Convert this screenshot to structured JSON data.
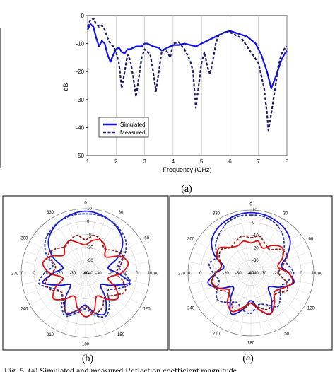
{
  "chart_data": [
    {
      "type": "line",
      "title": "",
      "xlabel": "Frequency (GHz)",
      "ylabel": "dB",
      "xlim": [
        1,
        8
      ],
      "ylim": [
        -50,
        0
      ],
      "x_ticks": [
        "1",
        "2",
        "3",
        "4",
        "5",
        "6",
        "7",
        "8"
      ],
      "y_ticks": [
        "0",
        "-10",
        "-20",
        "-30",
        "-40",
        "-50"
      ],
      "grid": "vertical",
      "legend": "bottom-left",
      "series": [
        {
          "name": "Simulated",
          "style": "solid",
          "color": "#1010ee",
          "points": [
            [
              1.0,
              -5
            ],
            [
              1.1,
              -3
            ],
            [
              1.2,
              -4
            ],
            [
              1.3,
              -8
            ],
            [
              1.4,
              -11
            ],
            [
              1.5,
              -9
            ],
            [
              1.6,
              -10
            ],
            [
              1.7,
              -14
            ],
            [
              1.8,
              -16.5
            ],
            [
              1.9,
              -14
            ],
            [
              2.0,
              -12
            ],
            [
              2.1,
              -11.5
            ],
            [
              2.2,
              -13
            ],
            [
              2.3,
              -13.5
            ],
            [
              2.4,
              -12
            ],
            [
              2.5,
              -12
            ],
            [
              2.7,
              -11
            ],
            [
              2.9,
              -11
            ],
            [
              3.0,
              -10
            ],
            [
              3.1,
              -10
            ],
            [
              3.3,
              -11
            ],
            [
              3.5,
              -11.5
            ],
            [
              3.6,
              -12.5
            ],
            [
              3.7,
              -12
            ],
            [
              3.8,
              -11.5
            ],
            [
              4.0,
              -10.5
            ],
            [
              4.2,
              -10.5
            ],
            [
              4.4,
              -10
            ],
            [
              4.6,
              -10.5
            ],
            [
              4.8,
              -11
            ],
            [
              5.0,
              -10
            ],
            [
              5.2,
              -9
            ],
            [
              5.5,
              -7.5
            ],
            [
              5.8,
              -6
            ],
            [
              6.0,
              -5.5
            ],
            [
              6.3,
              -6.5
            ],
            [
              6.6,
              -7.5
            ],
            [
              6.9,
              -10
            ],
            [
              7.1,
              -14
            ],
            [
              7.3,
              -20
            ],
            [
              7.45,
              -26
            ],
            [
              7.6,
              -22
            ],
            [
              7.8,
              -16
            ],
            [
              7.9,
              -14
            ],
            [
              8.0,
              -12.5
            ]
          ]
        },
        {
          "name": "Measured",
          "style": "dashed",
          "color": "#1a1a66",
          "points": [
            [
              1.0,
              -4
            ],
            [
              1.1,
              -1.5
            ],
            [
              1.2,
              -1
            ],
            [
              1.3,
              -3
            ],
            [
              1.4,
              -4
            ],
            [
              1.5,
              -3.5
            ],
            [
              1.6,
              -5
            ],
            [
              1.7,
              -8
            ],
            [
              1.8,
              -10
            ],
            [
              1.9,
              -11
            ],
            [
              2.0,
              -13
            ],
            [
              2.1,
              -17
            ],
            [
              2.2,
              -26
            ],
            [
              2.3,
              -20
            ],
            [
              2.4,
              -14
            ],
            [
              2.5,
              -16
            ],
            [
              2.6,
              -22
            ],
            [
              2.7,
              -29
            ],
            [
              2.8,
              -22
            ],
            [
              2.9,
              -15
            ],
            [
              3.0,
              -12
            ],
            [
              3.1,
              -13
            ],
            [
              3.2,
              -14
            ],
            [
              3.3,
              -20
            ],
            [
              3.4,
              -27
            ],
            [
              3.5,
              -20
            ],
            [
              3.6,
              -13
            ],
            [
              3.7,
              -12
            ],
            [
              3.8,
              -13
            ],
            [
              3.9,
              -15
            ],
            [
              4.0,
              -10
            ],
            [
              4.2,
              -9.5
            ],
            [
              4.4,
              -12
            ],
            [
              4.6,
              -16
            ],
            [
              4.7,
              -20
            ],
            [
              4.8,
              -33
            ],
            [
              4.9,
              -25
            ],
            [
              5.0,
              -17
            ],
            [
              5.1,
              -13
            ],
            [
              5.2,
              -18
            ],
            [
              5.3,
              -21
            ],
            [
              5.4,
              -16
            ],
            [
              5.5,
              -10
            ],
            [
              5.6,
              -7
            ],
            [
              5.8,
              -6
            ],
            [
              6.0,
              -6
            ],
            [
              6.2,
              -7
            ],
            [
              6.4,
              -8
            ],
            [
              6.6,
              -11
            ],
            [
              6.8,
              -14
            ],
            [
              7.0,
              -17
            ],
            [
              7.2,
              -26
            ],
            [
              7.3,
              -35
            ],
            [
              7.35,
              -41
            ],
            [
              7.45,
              -35
            ],
            [
              7.6,
              -25
            ],
            [
              7.7,
              -18
            ],
            [
              7.8,
              -14
            ],
            [
              7.9,
              -12
            ],
            [
              8.0,
              -11
            ]
          ]
        }
      ]
    },
    {
      "type": "polar",
      "panel_label": "(b)",
      "angle_ticks": [
        "0",
        "30",
        "60",
        "90",
        "120",
        "150",
        "180",
        "210",
        "240",
        "270",
        "300",
        "330"
      ],
      "radial_ticks": [
        "10",
        "0",
        "-10",
        "-20",
        "-30",
        "-40"
      ],
      "rlim": [
        -40,
        10
      ],
      "series": [
        {
          "color": "#1515dd",
          "style": "solid",
          "values": [
            8,
            7,
            5,
            2,
            -3,
            -12,
            -22,
            -15,
            -5,
            -18,
            -25,
            -15,
            -5,
            -8,
            -15,
            -10,
            -5,
            -15,
            -25,
            -18,
            -6,
            -15,
            -22,
            -12,
            -3,
            2,
            5,
            7
          ]
        },
        {
          "color": "#2233bb",
          "style": "dashed",
          "values": [
            6,
            6,
            5,
            3,
            0,
            -6,
            -14,
            -10,
            -4,
            -12,
            -18,
            -10,
            -3,
            -6,
            -12,
            -8,
            -3,
            -10,
            -16,
            -12,
            -3,
            -8,
            -14,
            -6,
            0,
            3,
            5,
            6
          ]
        },
        {
          "color": "#dd1111",
          "style": "solid",
          "values": [
            -18,
            -14,
            -12,
            -15,
            -20,
            -10,
            -6,
            -12,
            -22,
            -14,
            -8,
            -14,
            -20,
            -10,
            -6,
            -12,
            -20,
            -14,
            -8,
            -14,
            -22,
            -12,
            -6,
            -10,
            -18,
            -14,
            -12,
            -16
          ]
        },
        {
          "color": "#8b1a1a",
          "style": "dashed",
          "values": [
            -14,
            -10,
            -12,
            -16,
            -12,
            -8,
            -12,
            -16,
            -10,
            -6,
            -12,
            -16,
            -10,
            -8,
            -14,
            -10,
            -6,
            -12,
            -16,
            -10,
            -8,
            -14,
            -16,
            -8,
            -10,
            -14,
            -12,
            -10
          ]
        }
      ]
    },
    {
      "type": "polar",
      "panel_label": "(c)",
      "angle_ticks": [
        "0",
        "30",
        "60",
        "90",
        "120",
        "150",
        "180",
        "210",
        "240",
        "270",
        "300",
        "330"
      ],
      "radial_ticks": [
        "10",
        "0",
        "-10",
        "-20",
        "-30",
        "-40"
      ],
      "rlim": [
        -40,
        10
      ],
      "series": [
        {
          "color": "#1515dd",
          "style": "solid",
          "values": [
            8,
            7.5,
            6,
            4,
            0,
            -8,
            -15,
            -10,
            -5,
            -14,
            -22,
            -14,
            -4,
            -10,
            -18,
            -10,
            -4,
            -14,
            -22,
            -12,
            -5,
            -12,
            -18,
            -8,
            0,
            4,
            6,
            7.5
          ]
        },
        {
          "color": "#2233bb",
          "style": "dashed",
          "values": [
            6,
            6,
            4,
            0,
            -6,
            -12,
            -10,
            -6,
            -10,
            -14,
            -10,
            -6,
            -12,
            -14,
            -8,
            -10,
            -14,
            -10,
            -6,
            -10,
            -14,
            -10,
            -6,
            -10,
            -4,
            0,
            4,
            6
          ]
        },
        {
          "color": "#dd1111",
          "style": "solid",
          "values": [
            -16,
            -14,
            -18,
            -12,
            -8,
            -12,
            -18,
            -10,
            -6,
            -12,
            -16,
            -10,
            -4,
            -10,
            -16,
            -12,
            -6,
            -10,
            -18,
            -12,
            -8,
            -12,
            -16,
            -10,
            -8,
            -14,
            -16,
            -14
          ]
        },
        {
          "color": "#8b1a1a",
          "style": "dashed",
          "values": [
            -12,
            -10,
            -14,
            -16,
            -10,
            -8,
            -14,
            -18,
            -12,
            -8,
            -14,
            -12,
            -8,
            -12,
            -16,
            -10,
            -8,
            -14,
            -16,
            -10,
            -8,
            -12,
            -16,
            -12,
            -10,
            -14,
            -12,
            -10
          ]
        }
      ]
    }
  ],
  "labels": {
    "panel_a": "(a)",
    "panel_b": "(b)",
    "panel_c": "(c)",
    "caption_fragment": "Fig. 5. (a) Simulated and measured Reflection coefficient magnitude"
  }
}
